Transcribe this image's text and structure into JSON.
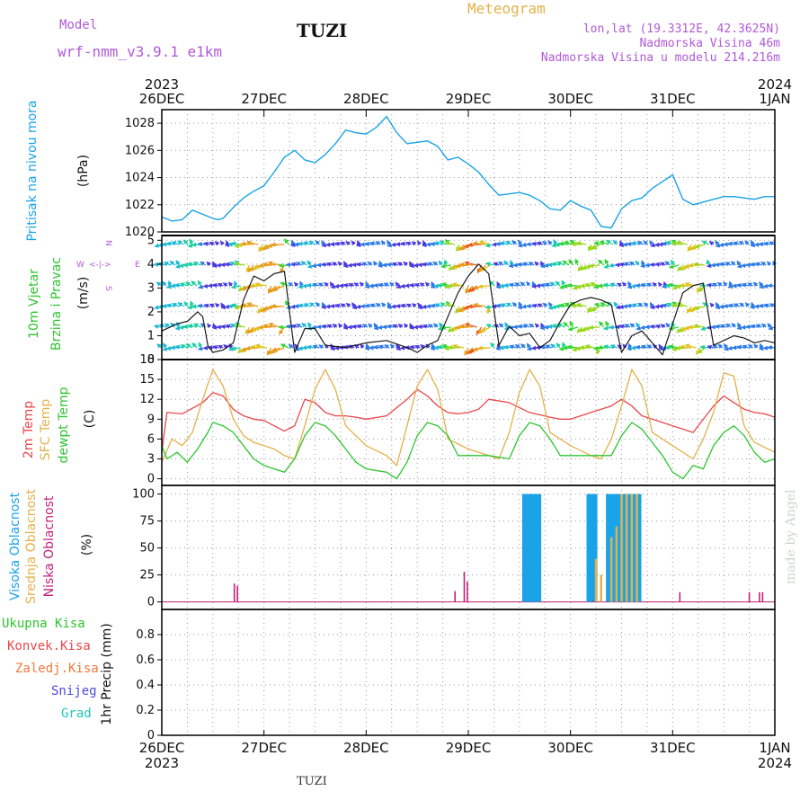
{
  "header": {
    "model_label": "Model",
    "model_name": "wrf-nmm_v3.9.1 e1km",
    "station": "TUZI",
    "meteogram_label": "Meteogram",
    "lonlat": "lon,lat (19.3312E, 42.3625N)",
    "elevation": "Nadmorska Visina 46m",
    "model_elevation": "Nadmorska Visina u modelu 214.216m"
  },
  "footer": {
    "station": "TUZI",
    "credit": "made by Angel"
  },
  "colors": {
    "pressure": "#1aa3e6",
    "temp2m": "#e8474c",
    "sfc": "#e3b14a",
    "dewpoint": "#2ec52e",
    "high_cloud": "#1aa3e6",
    "mid_cloud": "#e3b14a",
    "low_cloud": "#c2217a",
    "model": "#b05ad6"
  },
  "time_axis": {
    "top_years": [
      "2023",
      "2024"
    ],
    "bottom_years": [
      "2023",
      "2024"
    ],
    "days": [
      "26DEC",
      "27DEC",
      "28DEC",
      "29DEC",
      "30DEC",
      "31DEC",
      "1JAN"
    ]
  },
  "panels": {
    "pressure": {
      "ylabel": "Pritisak na nivou mora",
      "unit": "(hPa)",
      "ticks": [
        "1020",
        "1022",
        "1024",
        "1026",
        "1028"
      ]
    },
    "wind": {
      "ylabel_line1": "10m Vjetar",
      "ylabel_line2": "Brzina i Pravac",
      "unit": "(m/s)",
      "ticks": [
        "0",
        "1",
        "2",
        "3",
        "4",
        "5"
      ],
      "compass_n": "N",
      "compass_s": "S",
      "compass_e": "E",
      "compass_w": "W",
      "compass_arrows": "<-|->"
    },
    "temperature": {
      "label_2m": "2m Temp",
      "label_sfc": "SFC Temp",
      "label_dew": "dewpt Temp",
      "unit": "(C)",
      "ticks": [
        "0",
        "3",
        "6",
        "9",
        "12",
        "15",
        "18"
      ]
    },
    "clouds": {
      "label_high": "Visoka Oblacnost",
      "label_mid": "Srednja Oblacnost",
      "label_low": "Niska Oblacnost",
      "unit": "(%)",
      "ticks": [
        "0",
        "25",
        "50",
        "75",
        "100"
      ]
    },
    "precip": {
      "legend": [
        "Ukupna Kisa",
        "Konvek.Kisa",
        "Zaledj.Kisa",
        "Snijeg",
        "Grad"
      ],
      "ylabel": "1hr Precip (mm)",
      "ticks": [
        "0",
        "0.2",
        "0.4",
        "0.6",
        "0.8"
      ]
    }
  },
  "chart_data": [
    {
      "type": "line",
      "title": "",
      "ylabel": "Pritisak na nivou mora (hPa)",
      "ylim": [
        1020,
        1029
      ],
      "x_unit": "days from 26DEC 2023 00UTC",
      "series": [
        {
          "name": "Pritisak na nivou mora",
          "x": [
            0,
            0.1,
            0.2,
            0.3,
            0.4,
            0.5,
            0.55,
            0.6,
            0.7,
            0.8,
            0.9,
            1.0,
            1.1,
            1.2,
            1.3,
            1.4,
            1.5,
            1.6,
            1.7,
            1.8,
            1.9,
            2.0,
            2.1,
            2.2,
            2.3,
            2.4,
            2.5,
            2.6,
            2.7,
            2.8,
            2.9,
            3.0,
            3.1,
            3.2,
            3.3,
            3.4,
            3.5,
            3.6,
            3.7,
            3.8,
            3.9,
            4.0,
            4.1,
            4.2,
            4.3,
            4.4,
            4.5,
            4.55,
            4.6,
            4.7,
            4.8,
            4.9,
            5.0,
            5.1,
            5.2,
            5.3,
            5.4,
            5.5,
            5.6,
            5.7,
            5.8,
            5.9,
            6.0
          ],
          "y": [
            1021.1,
            1020.8,
            1020.9,
            1021.6,
            1021.3,
            1021.0,
            1020.9,
            1021.0,
            1021.8,
            1022.5,
            1023.0,
            1023.4,
            1024.4,
            1025.5,
            1026.0,
            1025.3,
            1025.1,
            1025.7,
            1026.5,
            1027.5,
            1027.3,
            1027.2,
            1027.7,
            1028.5,
            1027.3,
            1026.5,
            1026.6,
            1026.7,
            1026.3,
            1025.3,
            1025.5,
            1025.0,
            1024.4,
            1023.5,
            1022.7,
            1022.8,
            1022.9,
            1022.7,
            1022.3,
            1021.7,
            1021.6,
            1022.3,
            1021.9,
            1021.6,
            1020.4,
            1020.3,
            1021.7,
            1022.0,
            1022.3,
            1022.5,
            1023.2,
            1023.7,
            1024.2,
            1022.4,
            1022.0,
            1022.2,
            1022.4,
            1022.6,
            1022.6,
            1022.5,
            1022.4,
            1022.6,
            1022.6
          ]
        }
      ]
    },
    {
      "type": "line",
      "title": "",
      "ylabel": "10m Vjetar Brzina i Pravac (m/s)",
      "ylim": [
        0,
        5
      ],
      "x_unit": "days from 26DEC 2023 00UTC",
      "series": [
        {
          "name": "",
          "x": [
            0,
            0.15,
            0.25,
            0.35,
            0.4,
            0.45,
            0.5,
            0.6,
            0.7,
            0.8,
            0.9,
            1.0,
            1.1,
            1.2,
            1.3,
            1.4,
            1.5,
            1.6,
            1.8,
            2.0,
            2.2,
            2.4,
            2.5,
            2.6,
            2.7,
            2.8,
            2.9,
            3.0,
            3.1,
            3.2,
            3.3,
            3.4,
            3.5,
            3.6,
            3.7,
            3.8,
            3.9,
            4.0,
            4.1,
            4.2,
            4.3,
            4.4,
            4.5,
            4.6,
            4.7,
            4.8,
            4.9,
            5.0,
            5.1,
            5.2,
            5.3,
            5.4,
            5.5,
            5.6,
            5.7,
            5.8,
            5.9,
            6.0
          ],
          "y": [
            1.2,
            1.5,
            1.6,
            2.0,
            1.8,
            0.6,
            0.3,
            0.4,
            0.7,
            2.5,
            3.5,
            3.3,
            3.6,
            3.7,
            0.3,
            1.3,
            1.3,
            0.6,
            0.5,
            0.7,
            0.8,
            0.5,
            0.3,
            0.6,
            0.8,
            1.8,
            2.8,
            3.5,
            4.0,
            3.6,
            0.6,
            1.4,
            1.0,
            1.1,
            0.5,
            0.8,
            1.6,
            2.3,
            2.5,
            2.6,
            2.5,
            2.3,
            0.3,
            1.0,
            1.2,
            0.7,
            0.2,
            1.5,
            2.8,
            3.1,
            3.2,
            0.6,
            0.8,
            1.0,
            0.9,
            0.7,
            0.8,
            0.7
          ]
        }
      ]
    },
    {
      "type": "line",
      "title": "",
      "ylabel": "(C)",
      "ylim": [
        -1,
        18
      ],
      "x_unit": "days from 26DEC 2023 00UTC",
      "series": [
        {
          "name": "2m Temp",
          "x": [
            0,
            0.05,
            0.2,
            0.4,
            0.5,
            0.6,
            0.7,
            0.8,
            0.9,
            1.0,
            1.1,
            1.2,
            1.3,
            1.4,
            1.5,
            1.6,
            1.7,
            1.8,
            1.9,
            2.0,
            2.2,
            2.4,
            2.5,
            2.6,
            2.7,
            2.8,
            2.9,
            3.0,
            3.1,
            3.2,
            3.4,
            3.6,
            3.8,
            3.9,
            4.0,
            4.2,
            4.4,
            4.5,
            4.6,
            4.7,
            4.8,
            4.9,
            5.0,
            5.2,
            5.4,
            5.5,
            5.6,
            5.7,
            5.8,
            5.9,
            6.0
          ],
          "y": [
            4.0,
            10.0,
            9.8,
            11.5,
            13.0,
            12.5,
            10.5,
            9.5,
            9.0,
            8.8,
            8.0,
            7.2,
            8.0,
            12.0,
            11.5,
            10.0,
            9.5,
            9.5,
            9.3,
            9.0,
            9.5,
            12.0,
            13.5,
            12.5,
            11.0,
            10.0,
            9.8,
            10.0,
            10.5,
            12.0,
            11.5,
            10.0,
            9.3,
            9.0,
            9.0,
            10.0,
            11.0,
            12.0,
            11.0,
            9.5,
            9.0,
            8.5,
            8.0,
            7.0,
            11.0,
            12.5,
            11.5,
            10.5,
            10.0,
            9.8,
            9.3
          ]
        },
        {
          "name": "SFC Temp",
          "x": [
            0,
            0.1,
            0.2,
            0.3,
            0.4,
            0.5,
            0.6,
            0.7,
            0.8,
            0.9,
            1.0,
            1.1,
            1.2,
            1.3,
            1.4,
            1.5,
            1.6,
            1.7,
            1.8,
            2.0,
            2.2,
            2.3,
            2.4,
            2.5,
            2.6,
            2.7,
            2.8,
            3.0,
            3.2,
            3.3,
            3.4,
            3.5,
            3.6,
            3.7,
            3.8,
            4.0,
            4.2,
            4.3,
            4.4,
            4.5,
            4.6,
            4.7,
            4.8,
            5.0,
            5.2,
            5.3,
            5.4,
            5.5,
            5.6,
            5.7,
            5.8,
            6.0
          ],
          "y": [
            2.5,
            6.0,
            5.0,
            7.0,
            12.0,
            16.5,
            14.0,
            9.0,
            6.5,
            5.5,
            5.0,
            4.5,
            3.5,
            3.0,
            8.0,
            13.5,
            16.5,
            13.5,
            8.0,
            5.0,
            3.5,
            2.0,
            8.0,
            14.0,
            16.5,
            13.5,
            6.0,
            4.5,
            3.5,
            3.0,
            7.0,
            13.0,
            16.5,
            14.0,
            7.0,
            5.0,
            3.5,
            3.0,
            6.0,
            11.0,
            16.5,
            14.0,
            7.0,
            5.0,
            3.0,
            6.0,
            10.0,
            16.0,
            15.5,
            8.0,
            5.5,
            4.0
          ]
        },
        {
          "name": "dewpt Temp",
          "x": [
            0,
            0.05,
            0.15,
            0.25,
            0.35,
            0.45,
            0.5,
            0.6,
            0.7,
            0.8,
            0.9,
            1.0,
            1.1,
            1.2,
            1.3,
            1.4,
            1.5,
            1.6,
            1.7,
            1.8,
            1.9,
            2.0,
            2.2,
            2.3,
            2.4,
            2.5,
            2.6,
            2.7,
            2.8,
            2.9,
            3.0,
            3.2,
            3.4,
            3.5,
            3.6,
            3.7,
            3.8,
            3.9,
            4.0,
            4.2,
            4.4,
            4.5,
            4.6,
            4.7,
            4.8,
            4.9,
            5.0,
            5.1,
            5.2,
            5.3,
            5.4,
            5.5,
            5.6,
            5.7,
            5.8,
            5.9,
            6.0
          ],
          "y": [
            5.0,
            3.0,
            4.0,
            2.5,
            4.5,
            7.0,
            8.5,
            8.0,
            7.0,
            5.0,
            3.0,
            2.0,
            1.5,
            1.0,
            3.0,
            6.5,
            8.5,
            8.0,
            6.5,
            4.5,
            2.5,
            1.5,
            1.0,
            0.0,
            2.5,
            6.5,
            8.5,
            8.0,
            6.5,
            3.5,
            3.5,
            3.5,
            3.0,
            6.5,
            8.5,
            8.0,
            6.0,
            3.5,
            3.5,
            3.5,
            3.5,
            6.5,
            8.5,
            7.5,
            5.5,
            3.5,
            1.0,
            0.0,
            2.0,
            1.5,
            5.0,
            7.0,
            8.0,
            6.5,
            4.0,
            2.5,
            3.0
          ]
        }
      ]
    },
    {
      "type": "bar",
      "title": "",
      "ylabel": "(%)",
      "ylim": [
        0,
        100
      ],
      "x_unit": "days from 26DEC 2023 00UTC",
      "series": [
        {
          "name": "Visoka Oblacnost",
          "x": [
            3.54,
            3.56,
            3.58,
            3.6,
            3.62,
            3.64,
            3.66,
            3.68,
            3.7,
            4.17,
            4.19,
            4.21,
            4.23,
            4.25,
            4.36,
            4.38,
            4.4,
            4.42,
            4.44,
            4.46,
            4.48,
            4.5,
            4.52,
            4.54,
            4.56,
            4.58,
            4.6,
            4.62,
            4.64,
            4.66,
            4.68
          ],
          "y": [
            100,
            100,
            100,
            100,
            100,
            100,
            100,
            100,
            100,
            100,
            100,
            100,
            100,
            100,
            100,
            100,
            100,
            100,
            100,
            100,
            100,
            100,
            100,
            100,
            100,
            100,
            100,
            100,
            100,
            100,
            100
          ]
        },
        {
          "name": "Srednja Oblacnost",
          "x": [
            4.25,
            4.3,
            4.4,
            4.45,
            4.5,
            4.55,
            4.6,
            4.65
          ],
          "y": [
            40,
            25,
            60,
            70,
            100,
            100,
            100,
            100
          ]
        },
        {
          "name": "Niska Oblacnost",
          "x": [
            0.71,
            0.74,
            2.87,
            2.96,
            2.99,
            4.22,
            5.07,
            5.75,
            5.85,
            5.88
          ],
          "y": [
            17,
            15,
            10,
            28,
            19,
            1,
            9,
            9,
            9,
            9
          ]
        }
      ]
    },
    {
      "type": "bar",
      "title": "",
      "ylabel": "1hr Precip (mm)",
      "ylim": [
        0,
        1.0
      ],
      "x_unit": "days from 26DEC 2023 00UTC",
      "series": [
        {
          "name": "Ukupna Kisa",
          "x": [],
          "y": []
        },
        {
          "name": "Konvek.Kisa",
          "x": [],
          "y": []
        },
        {
          "name": "Zaledj.Kisa",
          "x": [],
          "y": []
        },
        {
          "name": "Snijeg",
          "x": [],
          "y": []
        },
        {
          "name": "Grad",
          "x": [],
          "y": []
        }
      ]
    }
  ]
}
